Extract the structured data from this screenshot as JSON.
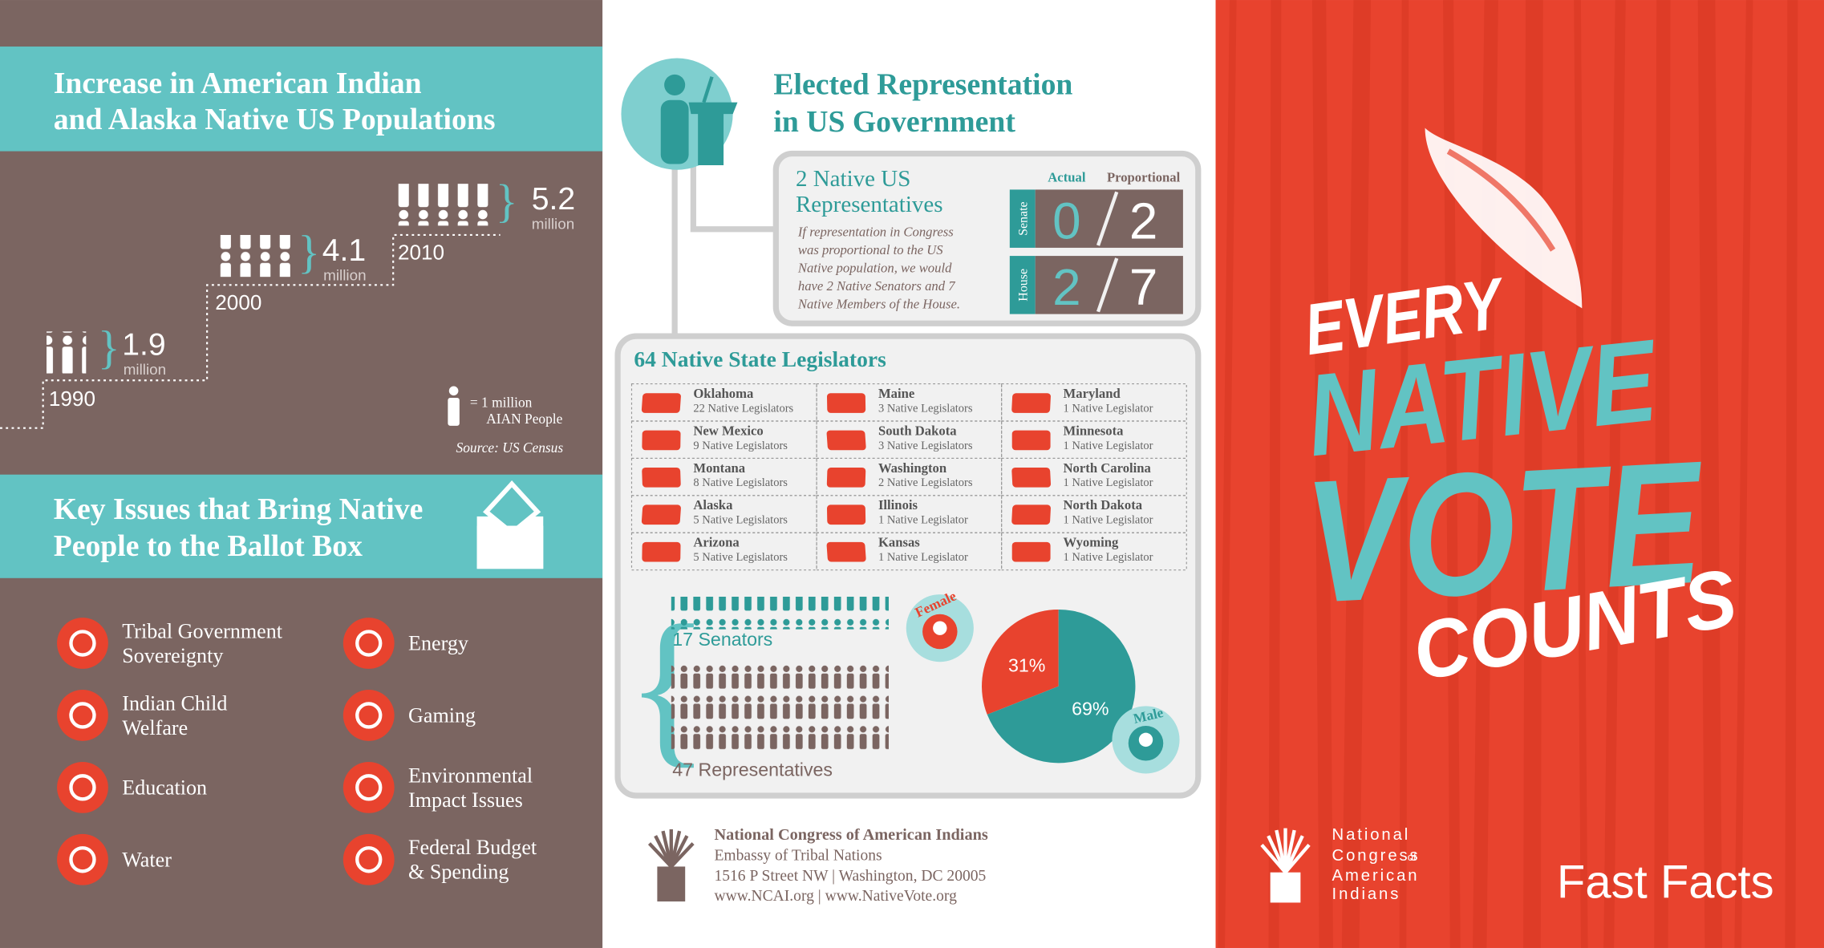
{
  "population": {
    "title_lines": [
      "Increase in American Indian",
      "and Alaska Native US Populations"
    ],
    "points": [
      {
        "year": "1990",
        "value": "1.9",
        "unit": "million"
      },
      {
        "year": "2000",
        "value": "4.1",
        "unit": "million"
      },
      {
        "year": "2010",
        "value": "5.2",
        "unit": "million"
      }
    ],
    "legend": {
      "unit": "= 1 million",
      "label": "AIAN People"
    },
    "source": "Source: US Census"
  },
  "issues": {
    "title_lines": [
      "Key Issues that Bring Native",
      "People to the Ballot Box"
    ],
    "items": [
      {
        "lines": [
          "Tribal Government",
          "Sovereignty"
        ]
      },
      {
        "lines": [
          "Indian Child",
          "Welfare"
        ]
      },
      {
        "lines": [
          "Education"
        ]
      },
      {
        "lines": [
          "Water"
        ]
      },
      {
        "lines": [
          "Energy"
        ]
      },
      {
        "lines": [
          "Gaming"
        ]
      },
      {
        "lines": [
          "Environmental",
          "Impact Issues"
        ]
      },
      {
        "lines": [
          "Federal Budget",
          "& Spending"
        ]
      }
    ]
  },
  "representation": {
    "title_lines": [
      "Elected Representation",
      "in US Government"
    ],
    "box_title_lines": [
      "2 Native US",
      "Representatives"
    ],
    "note_lines": [
      "If representation in Congress",
      "was proportional to the US",
      "Native population, we would",
      "have 2 Native Senators and 7",
      "Native Members of the House."
    ],
    "headers": [
      "Actual",
      "Proportional"
    ],
    "rows": [
      {
        "chamber": "Senate",
        "actual": 0,
        "proportional": 2
      },
      {
        "chamber": "House",
        "actual": 2,
        "proportional": 7
      }
    ]
  },
  "state_legislators": {
    "title": "64 Native State Legislators",
    "columns": [
      [
        {
          "state": "Oklahoma",
          "count": "22 Native Legislators"
        },
        {
          "state": "New Mexico",
          "count": "9 Native Legislators"
        },
        {
          "state": "Montana",
          "count": "8 Native Legislators"
        },
        {
          "state": "Alaska",
          "count": "5 Native Legislators"
        },
        {
          "state": "Arizona",
          "count": "5 Native Legislators"
        }
      ],
      [
        {
          "state": "Maine",
          "count": "3 Native Legislators"
        },
        {
          "state": "South Dakota",
          "count": "3 Native Legislators"
        },
        {
          "state": "Washington",
          "count": "2 Native Legislators"
        },
        {
          "state": "Illinois",
          "count": "1 Native Legislator"
        },
        {
          "state": "Kansas",
          "count": "1 Native Legislator"
        }
      ],
      [
        {
          "state": "Maryland",
          "count": "1 Native Legislator"
        },
        {
          "state": "Minnesota",
          "count": "1 Native Legislator"
        },
        {
          "state": "North Carolina",
          "count": "1 Native Legislator"
        },
        {
          "state": "North Dakota",
          "count": "1 Native Legislator"
        },
        {
          "state": "Wyoming",
          "count": "1 Native Legislator"
        }
      ]
    ],
    "senators": "17 Senators",
    "representatives": "47 Representatives",
    "gender_split": [
      {
        "name": "Female",
        "value": 31,
        "value_label": "31%",
        "color": "#e8432e"
      },
      {
        "name": "Male",
        "value": 69,
        "value_label": "69%",
        "color": "#2e9b98"
      }
    ]
  },
  "footer": {
    "lines": [
      "National Congress of American Indians",
      "Embassy of Tribal Nations",
      "1516 P Street NW | Washington, DC 20005",
      "www.NCAI.org | www.NativeVote.org"
    ]
  },
  "cover": {
    "headline": [
      "EVERY",
      "NATIVE",
      "VOTE",
      "COUNTS"
    ],
    "logo_lines": [
      "National",
      "Congress",
      "of",
      "American",
      "Indians"
    ],
    "tagline": "Fast Facts"
  }
}
